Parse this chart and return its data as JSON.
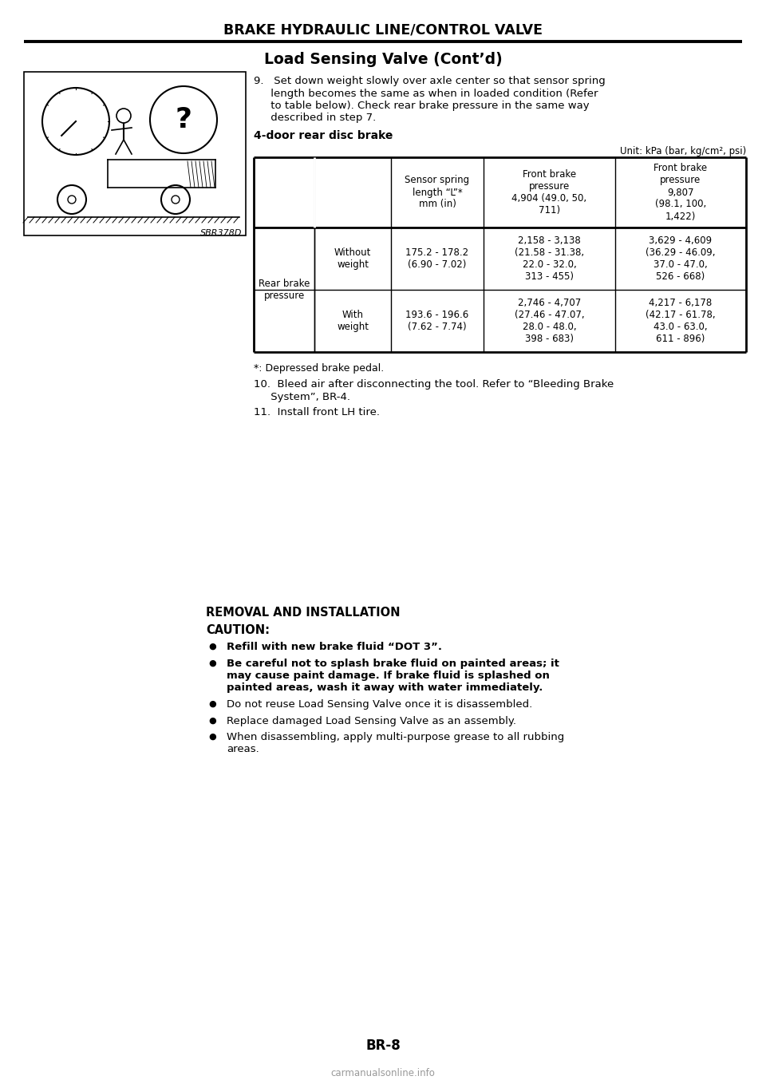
{
  "page_title": "BRAKE HYDRAULIC LINE/CONTROL VALVE",
  "section_title": "Load Sensing Valve (Cont’d)",
  "step9_lines": [
    "9.   Set down weight slowly over axle center so that sensor spring",
    "     length becomes the same as when in loaded condition (Refer",
    "     to table below). Check rear brake pressure in the same way",
    "     described in step 7."
  ],
  "bold_label": "4-door rear disc brake",
  "unit_text": "Unit: kPa (bar, kg/cm², psi)",
  "image_label": "SBR378D",
  "col_header1": "Sensor spring\nlength “L”*\nmm (in)",
  "col_header2": "Front brake\npressure\n4,904 (49.0, 50,\n711)",
  "col_header3": "Front brake\npressure\n9,807\n(98.1, 100,\n1,422)",
  "row_label": "Rear brake\npressure",
  "row1_sub": "Without\nweight",
  "row1_c1": "175.2 - 178.2\n(6.90 - 7.02)",
  "row1_c2": "2,158 - 3,138\n(21.58 - 31.38,\n22.0 - 32.0,\n313 - 455)",
  "row1_c3": "3,629 - 4,609\n(36.29 - 46.09,\n37.0 - 47.0,\n526 - 668)",
  "row2_sub": "With\nweight",
  "row2_c1": "193.6 - 196.6\n(7.62 - 7.74)",
  "row2_c2": "2,746 - 4,707\n(27.46 - 47.07,\n28.0 - 48.0,\n398 - 683)",
  "row2_c3": "4,217 - 6,178\n(42.17 - 61.78,\n43.0 - 63.0,\n611 - 896)",
  "footnote": "*: Depressed brake pedal.",
  "step10_lines": [
    "10.  Bleed air after disconnecting the tool. Refer to “Bleeding Brake",
    "     System”, BR-4."
  ],
  "step11": "11.  Install front LH tire.",
  "removal_title": "REMOVAL AND INSTALLATION",
  "caution_title": "CAUTION:",
  "bullets": [
    {
      "text": "Refill with new brake fluid “DOT 3”.",
      "bold": true
    },
    {
      "text": "Be careful not to splash brake fluid on painted areas; it\nmay cause paint damage. If brake fluid is splashed on\npainted areas, wash it away with water immediately.",
      "bold": true
    },
    {
      "text": "Do not reuse Load Sensing Valve once it is disassembled.",
      "bold": false
    },
    {
      "text": "Replace damaged Load Sensing Valve as an assembly.",
      "bold": false
    },
    {
      "text": "When disassembling, apply multi-purpose grease to all rubbing\nareas.",
      "bold": false
    }
  ],
  "page_number": "BR-8",
  "watermark": "carmanualsonline.info"
}
